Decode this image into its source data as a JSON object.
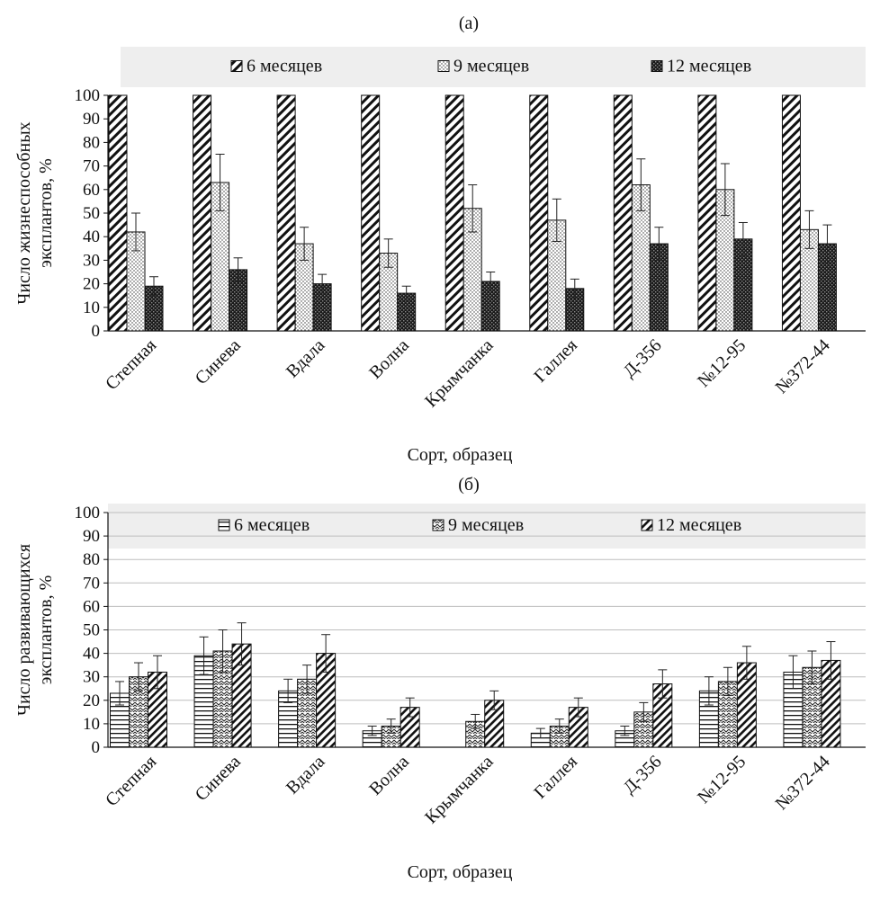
{
  "charts": [
    {
      "panel_label": "(а)",
      "ylabel_lines": [
        "Число жизнеспособных",
        "эксплантов, %"
      ],
      "xlabel": "Сорт, образец",
      "legend": [
        "6 месяцев",
        "9 месяцев",
        "12 месяцев"
      ],
      "ticks": [
        "0",
        "10",
        "20",
        "30",
        "40",
        "50",
        "60",
        "70",
        "80",
        "90",
        "100"
      ]
    },
    {
      "panel_label": "(б)",
      "ylabel_lines": [
        "Число развивающихся",
        "эксплантов, %"
      ],
      "xlabel": "Сорт, образец",
      "legend": [
        "6 месяцев",
        "9 месяцев",
        "12 месяцев"
      ],
      "ticks": [
        "0",
        "10",
        "20",
        "30",
        "40",
        "50",
        "60",
        "70",
        "80",
        "90",
        "100"
      ]
    }
  ],
  "chart_data": [
    {
      "type": "bar",
      "categories": [
        "Степная",
        "Синева",
        "Вдала",
        "Волна",
        "Крымчанка",
        "Галлея",
        "Д-356",
        "№12-95",
        "№372-44"
      ],
      "series": [
        {
          "name": "6 месяцев",
          "values": [
            100,
            100,
            100,
            100,
            100,
            100,
            100,
            100,
            100
          ],
          "errors": [
            0,
            0,
            0,
            0,
            0,
            0,
            0,
            0,
            0
          ]
        },
        {
          "name": "9 месяцев",
          "values": [
            42,
            63,
            37,
            33,
            52,
            47,
            62,
            60,
            43
          ],
          "errors": [
            8,
            12,
            7,
            6,
            10,
            9,
            11,
            11,
            8
          ]
        },
        {
          "name": "12 месяцев",
          "values": [
            19,
            26,
            20,
            16,
            21,
            18,
            37,
            39,
            37
          ],
          "errors": [
            4,
            5,
            4,
            3,
            4,
            4,
            7,
            7,
            8
          ]
        }
      ],
      "xlabel": "Сорт, образец",
      "ylabel": "Число жизнеспособных эксплантов, %",
      "ylim": [
        0,
        100
      ],
      "grid": false,
      "legend_position": "top"
    },
    {
      "type": "bar",
      "categories": [
        "Степная",
        "Синева",
        "Вдала",
        "Волна",
        "Крымчанка",
        "Галлея",
        "Д-356",
        "№12-95",
        "№372-44"
      ],
      "series": [
        {
          "name": "6 месяцев",
          "values": [
            23,
            39,
            24,
            7,
            0,
            6,
            7,
            24,
            32
          ],
          "errors": [
            5,
            8,
            5,
            2,
            0,
            2,
            2,
            6,
            7
          ]
        },
        {
          "name": "9 месяцев",
          "values": [
            30,
            41,
            29,
            9,
            11,
            9,
            15,
            28,
            34
          ],
          "errors": [
            6,
            9,
            6,
            3,
            3,
            3,
            4,
            6,
            7
          ]
        },
        {
          "name": "12 месяцев",
          "values": [
            32,
            44,
            40,
            17,
            20,
            17,
            27,
            36,
            37
          ],
          "errors": [
            7,
            9,
            8,
            4,
            4,
            4,
            6,
            7,
            8
          ]
        }
      ],
      "xlabel": "Сорт, образец",
      "ylabel": "Число развивающихся эксплантов, %",
      "ylim": [
        0,
        100
      ],
      "grid": true,
      "legend_position": "top"
    }
  ]
}
